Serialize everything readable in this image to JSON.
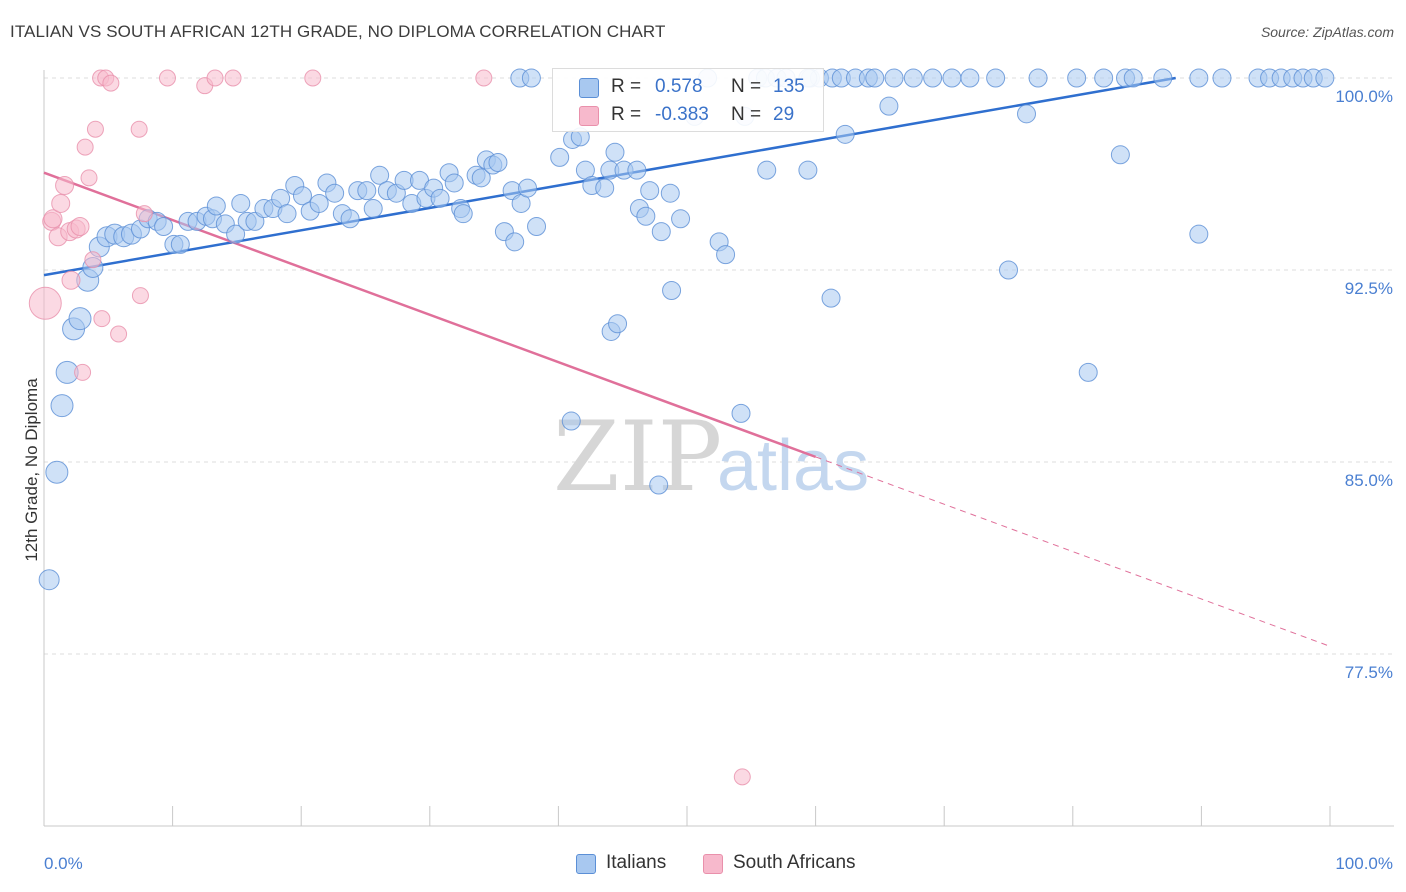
{
  "header": {
    "title": "ITALIAN VS SOUTH AFRICAN 12TH GRADE, NO DIPLOMA CORRELATION CHART",
    "source": "Source: ZipAtlas.com"
  },
  "legend": {
    "rows": [
      {
        "r_label": "R =",
        "r_value": "0.578",
        "n_label": "N =",
        "n_value": "135"
      },
      {
        "r_label": "R =",
        "r_value": "-0.383",
        "n_label": "N =",
        "n_value": "29"
      }
    ]
  },
  "bottom_legend": {
    "italians": "Italians",
    "south_africans": "South Africans"
  },
  "watermark": {
    "zip": "ZIP",
    "atlas": "atlas"
  },
  "chart_data": {
    "type": "scatter",
    "title": "ITALIAN VS SOUTH AFRICAN 12TH GRADE, NO DIPLOMA CORRELATION CHART",
    "xlabel": "",
    "ylabel": "12th Grade, No Diploma",
    "xlim": [
      0,
      100
    ],
    "ylim": [
      71.5,
      101.3
    ],
    "x_tick_labels": [
      "0.0%",
      "100.0%"
    ],
    "y_ticks": [
      77.5,
      85.0,
      92.5,
      100.0
    ],
    "y_tick_labels": [
      "77.5%",
      "85.0%",
      "92.5%",
      "100.0%"
    ],
    "grid": true,
    "legend_position": "top-center",
    "colors": {
      "italians_fill": "#a8c8f0",
      "italians_stroke": "#5b8fd6",
      "italians_line": "#2f6fcf",
      "south_africans_fill": "#f7b9cc",
      "south_africans_stroke": "#e990ab",
      "south_africans_line": "#e0709a",
      "tick_text": "#4a7fd1"
    },
    "series": [
      {
        "name": "Italians",
        "color": "#a8c8f0",
        "trend": {
          "x": [
            0,
            88
          ],
          "y": [
            92.3,
            100.0
          ]
        },
        "points": [
          [
            0.4,
            80.4,
            10
          ],
          [
            1.0,
            84.6,
            11
          ],
          [
            1.4,
            87.2,
            11
          ],
          [
            1.8,
            88.5,
            11
          ],
          [
            2.3,
            90.2,
            11
          ],
          [
            2.8,
            90.6,
            11
          ],
          [
            3.4,
            92.1,
            11
          ],
          [
            3.8,
            92.6,
            10
          ],
          [
            4.3,
            93.4,
            10
          ],
          [
            4.9,
            93.8,
            10
          ],
          [
            5.5,
            93.9,
            10
          ],
          [
            6.2,
            93.8,
            10
          ],
          [
            6.8,
            93.9,
            10
          ],
          [
            7.5,
            94.1,
            9
          ],
          [
            8.1,
            94.5,
            9
          ],
          [
            8.8,
            94.4,
            9
          ],
          [
            9.3,
            94.2,
            9
          ],
          [
            10.1,
            93.5,
            9
          ],
          [
            10.6,
            93.5,
            9
          ],
          [
            11.2,
            94.4,
            9
          ],
          [
            11.9,
            94.4,
            9
          ],
          [
            12.6,
            94.6,
            9
          ],
          [
            13.1,
            94.5,
            9
          ],
          [
            13.4,
            95.0,
            9
          ],
          [
            14.1,
            94.3,
            9
          ],
          [
            14.9,
            93.9,
            9
          ],
          [
            15.3,
            95.1,
            9
          ],
          [
            15.8,
            94.4,
            9
          ],
          [
            16.4,
            94.4,
            9
          ],
          [
            17.1,
            94.9,
            9
          ],
          [
            17.8,
            94.9,
            9
          ],
          [
            18.4,
            95.3,
            9
          ],
          [
            18.9,
            94.7,
            9
          ],
          [
            19.5,
            95.8,
            9
          ],
          [
            20.1,
            95.4,
            9
          ],
          [
            20.7,
            94.8,
            9
          ],
          [
            21.4,
            95.1,
            9
          ],
          [
            22.0,
            95.9,
            9
          ],
          [
            22.6,
            95.5,
            9
          ],
          [
            23.2,
            94.7,
            9
          ],
          [
            23.8,
            94.5,
            9
          ],
          [
            24.4,
            95.6,
            9
          ],
          [
            25.1,
            95.6,
            9
          ],
          [
            25.6,
            94.9,
            9
          ],
          [
            26.1,
            96.2,
            9
          ],
          [
            26.7,
            95.6,
            9
          ],
          [
            27.4,
            95.5,
            9
          ],
          [
            28.0,
            96.0,
            9
          ],
          [
            28.6,
            95.1,
            9
          ],
          [
            29.2,
            96.0,
            9
          ],
          [
            29.7,
            95.3,
            9
          ],
          [
            30.3,
            95.7,
            9
          ],
          [
            30.8,
            95.3,
            9
          ],
          [
            31.5,
            96.3,
            9
          ],
          [
            31.9,
            95.9,
            9
          ],
          [
            32.4,
            94.9,
            9
          ],
          [
            32.6,
            94.7,
            9
          ],
          [
            33.6,
            96.2,
            9
          ],
          [
            34.0,
            96.1,
            9
          ],
          [
            34.4,
            96.8,
            9
          ],
          [
            34.9,
            96.6,
            9
          ],
          [
            35.3,
            96.7,
            9
          ],
          [
            35.8,
            94.0,
            9
          ],
          [
            36.4,
            95.6,
            9
          ],
          [
            36.6,
            93.6,
            9
          ],
          [
            37.1,
            95.1,
            9
          ],
          [
            37.6,
            95.7,
            9
          ],
          [
            38.3,
            94.2,
            9
          ],
          [
            37.0,
            100.0,
            9
          ],
          [
            37.9,
            100.0,
            9
          ],
          [
            40.1,
            96.9,
            9
          ],
          [
            41.1,
            97.6,
            9
          ],
          [
            41.7,
            97.7,
            9
          ],
          [
            41.0,
            86.6,
            9
          ],
          [
            42.1,
            96.4,
            9
          ],
          [
            42.6,
            95.8,
            9
          ],
          [
            43.6,
            95.7,
            9
          ],
          [
            44.0,
            96.4,
            9
          ],
          [
            44.1,
            90.1,
            9
          ],
          [
            44.4,
            97.1,
            9
          ],
          [
            44.6,
            90.4,
            9
          ],
          [
            45.1,
            96.4,
            9
          ],
          [
            46.1,
            96.4,
            9
          ],
          [
            46.3,
            94.9,
            9
          ],
          [
            46.8,
            94.6,
            9
          ],
          [
            47.1,
            95.6,
            9
          ],
          [
            47.8,
            84.1,
            9
          ],
          [
            48.0,
            94.0,
            9
          ],
          [
            48.8,
            91.7,
            9
          ],
          [
            48.7,
            95.5,
            9
          ],
          [
            49.5,
            94.5,
            9
          ],
          [
            50.6,
            98.5,
            9
          ],
          [
            51.6,
            100.0,
            9
          ],
          [
            52.5,
            93.6,
            9
          ],
          [
            53.0,
            93.1,
            9
          ],
          [
            54.2,
            86.9,
            9
          ],
          [
            54.5,
            98.5,
            9
          ],
          [
            55.5,
            100.0,
            9
          ],
          [
            56.1,
            100.0,
            9
          ],
          [
            57.0,
            100.0,
            9
          ],
          [
            57.7,
            100.0,
            9
          ],
          [
            59.4,
            96.4,
            9
          ],
          [
            59.6,
            100.0,
            9
          ],
          [
            60.3,
            100.0,
            9
          ],
          [
            61.3,
            100.0,
            9
          ],
          [
            62.0,
            100.0,
            9
          ],
          [
            63.1,
            100.0,
            9
          ],
          [
            64.1,
            100.0,
            9
          ],
          [
            64.6,
            100.0,
            9
          ],
          [
            66.1,
            100.0,
            9
          ],
          [
            67.6,
            100.0,
            9
          ],
          [
            69.1,
            100.0,
            9
          ],
          [
            70.6,
            100.0,
            9
          ],
          [
            72.0,
            100.0,
            9
          ],
          [
            74.0,
            100.0,
            9
          ],
          [
            77.3,
            100.0,
            9
          ],
          [
            80.3,
            100.0,
            9
          ],
          [
            81.2,
            88.5,
            9
          ],
          [
            82.4,
            100.0,
            9
          ],
          [
            84.1,
            100.0,
            9
          ],
          [
            84.7,
            100.0,
            9
          ],
          [
            87.0,
            100.0,
            9
          ],
          [
            89.8,
            93.9,
            9
          ],
          [
            89.8,
            100.0,
            9
          ],
          [
            91.6,
            100.0,
            9
          ],
          [
            94.4,
            100.0,
            9
          ],
          [
            95.3,
            100.0,
            9
          ],
          [
            96.2,
            100.0,
            9
          ],
          [
            97.1,
            100.0,
            9
          ],
          [
            97.9,
            100.0,
            9
          ],
          [
            98.7,
            100.0,
            9
          ],
          [
            99.6,
            100.0,
            9
          ],
          [
            61.2,
            91.4,
            9
          ],
          [
            56.2,
            96.4,
            9
          ],
          [
            59.4,
            100.0,
            9
          ],
          [
            62.3,
            97.8,
            9
          ],
          [
            65.7,
            98.9,
            9
          ],
          [
            75.0,
            92.5,
            9
          ],
          [
            76.4,
            98.6,
            9
          ],
          [
            83.7,
            97.0,
            9
          ]
        ]
      },
      {
        "name": "South Africans",
        "color": "#f7b9cc",
        "trend": {
          "x": [
            0,
            60
          ],
          "y": [
            96.3,
            85.2
          ]
        },
        "trend_dashed": {
          "x": [
            60,
            100
          ],
          "y": [
            85.2,
            77.8
          ]
        },
        "points": [
          [
            0.1,
            91.2,
            16
          ],
          [
            0.6,
            94.4,
            9
          ],
          [
            0.7,
            94.5,
            9
          ],
          [
            1.1,
            93.8,
            9
          ],
          [
            1.3,
            95.1,
            9
          ],
          [
            1.6,
            95.8,
            9
          ],
          [
            2.0,
            94.0,
            9
          ],
          [
            2.1,
            92.1,
            9
          ],
          [
            2.5,
            94.1,
            9
          ],
          [
            2.8,
            94.2,
            9
          ],
          [
            3.0,
            88.5,
            8
          ],
          [
            3.2,
            97.3,
            8
          ],
          [
            3.5,
            96.1,
            8
          ],
          [
            3.8,
            92.9,
            8
          ],
          [
            4.0,
            98.0,
            8
          ],
          [
            4.5,
            90.6,
            8
          ],
          [
            4.4,
            100.0,
            8
          ],
          [
            4.8,
            100.0,
            8
          ],
          [
            5.2,
            99.8,
            8
          ],
          [
            5.8,
            90.0,
            8
          ],
          [
            7.4,
            98.0,
            8
          ],
          [
            7.5,
            91.5,
            8
          ],
          [
            7.8,
            94.7,
            8
          ],
          [
            9.6,
            100.0,
            8
          ],
          [
            12.5,
            99.7,
            8
          ],
          [
            13.3,
            100.0,
            8
          ],
          [
            14.7,
            100.0,
            8
          ],
          [
            20.9,
            100.0,
            8
          ],
          [
            34.2,
            100.0,
            8
          ],
          [
            54.3,
            72.7,
            8
          ]
        ]
      }
    ]
  }
}
